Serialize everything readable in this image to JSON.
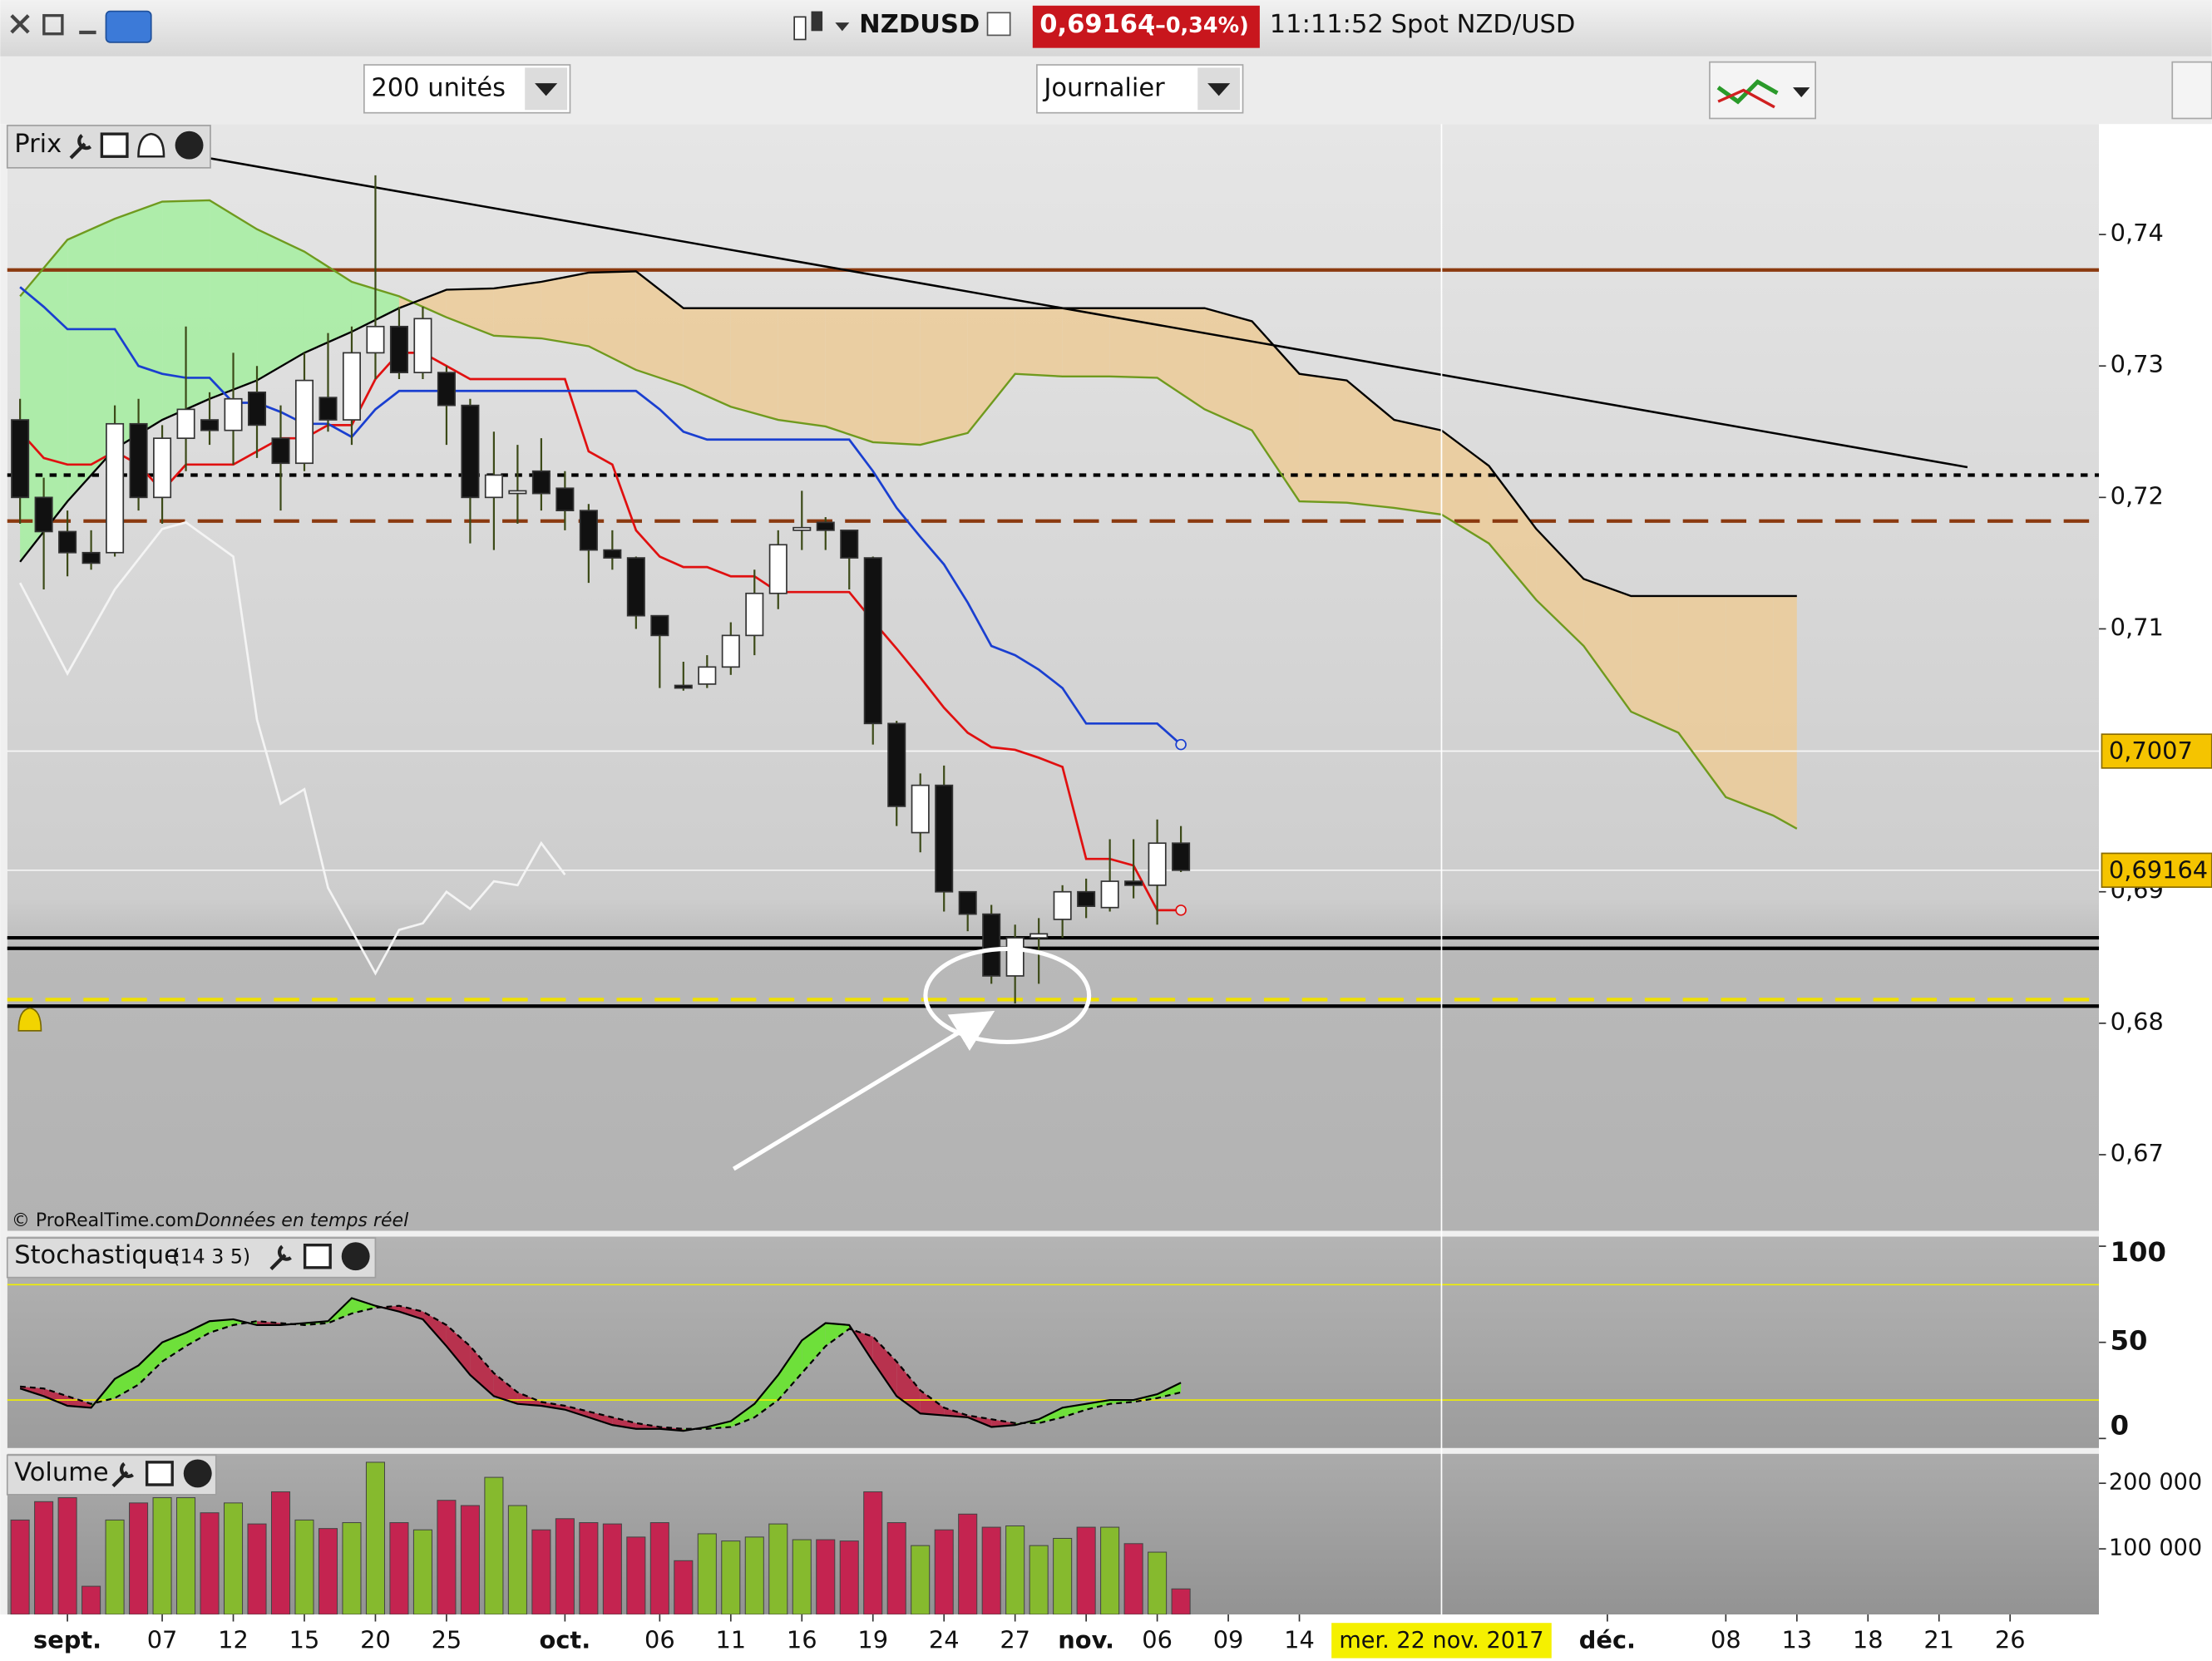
{
  "toolbar": {
    "symbol": "NZDUSD",
    "price": "0,69164",
    "change": "(–0,34%)",
    "time": "11:11:52",
    "description": "Spot NZD/USD",
    "units": "200 unités",
    "period": "Journalier"
  },
  "chart_data": [
    {
      "type": "candlestick",
      "title": "Prix",
      "copyright": "© ProRealTime.com",
      "source_note": "Données en temps réel",
      "x": [
        0,
        1,
        2,
        3,
        4,
        5,
        6,
        7,
        8,
        9,
        10,
        11,
        12,
        13,
        14,
        15,
        16,
        17,
        18,
        19,
        20,
        21,
        22,
        23,
        24,
        25,
        26,
        27,
        28,
        29,
        30,
        31,
        32,
        33,
        34,
        35,
        36,
        37,
        38,
        39,
        40,
        41,
        42,
        43,
        44,
        45,
        46,
        47,
        48,
        49
      ],
      "open": [
        0.7259,
        0.72,
        0.7174,
        0.7158,
        0.7158,
        0.7256,
        0.72,
        0.7245,
        0.7259,
        0.7251,
        0.728,
        0.7245,
        0.7226,
        0.7276,
        0.7259,
        0.731,
        0.733,
        0.7295,
        0.7295,
        0.727,
        0.72,
        0.7203,
        0.722,
        0.7207,
        0.719,
        0.716,
        0.7154,
        0.711,
        0.7057,
        0.7058,
        0.7071,
        0.7095,
        0.7127,
        0.7175,
        0.7181,
        0.7175,
        0.7154,
        0.7028,
        0.6945,
        0.6981,
        0.69,
        0.6883,
        0.6836,
        0.6865,
        0.6879,
        0.69,
        0.6888,
        0.6908,
        0.6905,
        0.6937
      ],
      "high": [
        0.7275,
        0.7215,
        0.719,
        0.7175,
        0.727,
        0.7275,
        0.7255,
        0.733,
        0.728,
        0.731,
        0.73,
        0.727,
        0.731,
        0.7325,
        0.733,
        0.7445,
        0.7345,
        0.7345,
        0.73,
        0.7275,
        0.725,
        0.724,
        0.7245,
        0.722,
        0.7195,
        0.7175,
        0.7155,
        0.711,
        0.7075,
        0.708,
        0.7105,
        0.7145,
        0.7175,
        0.7205,
        0.7185,
        0.7175,
        0.7155,
        0.703,
        0.699,
        0.6996,
        0.69,
        0.689,
        0.6875,
        0.688,
        0.6905,
        0.691,
        0.694,
        0.694,
        0.6955,
        0.695
      ],
      "low": [
        0.718,
        0.713,
        0.714,
        0.7145,
        0.7155,
        0.719,
        0.718,
        0.722,
        0.724,
        0.7225,
        0.723,
        0.719,
        0.722,
        0.725,
        0.724,
        0.729,
        0.729,
        0.729,
        0.724,
        0.7165,
        0.716,
        0.718,
        0.719,
        0.7175,
        0.7135,
        0.7145,
        0.71,
        0.7055,
        0.7053,
        0.7055,
        0.7065,
        0.708,
        0.7115,
        0.716,
        0.716,
        0.713,
        0.7012,
        0.695,
        0.693,
        0.6885,
        0.687,
        0.683,
        0.6815,
        0.683,
        0.6865,
        0.688,
        0.6885,
        0.6895,
        0.6875,
        0.6915
      ],
      "close": [
        0.72,
        0.7174,
        0.7158,
        0.715,
        0.7256,
        0.72,
        0.7245,
        0.7267,
        0.7251,
        0.7275,
        0.7255,
        0.7226,
        0.7289,
        0.7259,
        0.731,
        0.733,
        0.7295,
        0.7336,
        0.727,
        0.72,
        0.7217,
        0.7205,
        0.7203,
        0.719,
        0.716,
        0.7154,
        0.711,
        0.7095,
        0.7055,
        0.7071,
        0.7095,
        0.7127,
        0.7164,
        0.7177,
        0.7175,
        0.7154,
        0.7028,
        0.6965,
        0.6981,
        0.69,
        0.6883,
        0.6836,
        0.6865,
        0.6868,
        0.69,
        0.6889,
        0.6908,
        0.6905,
        0.6937,
        0.69164
      ],
      "up_color": "#ffffff",
      "down_color": "#111111",
      "lines": [
        {
          "color": "#e01010",
          "values": [
            0.725,
            0.723,
            0.7225,
            0.7225,
            0.7235,
            0.7225,
            0.7205,
            0.7225,
            0.7225,
            0.7225,
            0.7235,
            0.7245,
            0.7245,
            0.7255,
            0.7255,
            0.729,
            0.731,
            0.731,
            0.73,
            0.729,
            0.729,
            0.729,
            0.729,
            0.729,
            0.7235,
            0.7225,
            0.7175,
            0.7155,
            0.7147,
            0.7147,
            0.714,
            0.714,
            0.7128,
            0.7128,
            0.7128,
            0.7128,
            0.7106,
            0.7085,
            0.7063,
            0.704,
            0.7021,
            0.701,
            0.7008,
            0.7002,
            0.6995,
            0.6925,
            0.6925,
            0.692,
            0.6886,
            0.6886
          ]
        },
        {
          "color": "#1a3fd0",
          "values": [
            0.736,
            0.7345,
            0.7328,
            0.7328,
            0.7328,
            0.73,
            0.7294,
            0.7291,
            0.7291,
            0.7272,
            0.7272,
            0.7265,
            0.7256,
            0.7256,
            0.7246,
            0.7267,
            0.7281,
            0.7281,
            0.7281,
            0.7281,
            0.7281,
            0.7281,
            0.7281,
            0.7281,
            0.7281,
            0.7281,
            0.7281,
            0.7267,
            0.725,
            0.7244,
            0.7244,
            0.7244,
            0.7244,
            0.7244,
            0.7244,
            0.7244,
            0.722,
            0.7192,
            0.717,
            0.7149,
            0.712,
            0.7087,
            0.708,
            0.7069,
            0.7055,
            0.7028,
            0.7028,
            0.7028,
            0.7028,
            0.7012
          ]
        },
        {
          "color": "#f4f4f4",
          "x": [
            0,
            2,
            4,
            6,
            7,
            9,
            10,
            11,
            12,
            13,
            15,
            16,
            17,
            18,
            19,
            20,
            21,
            22,
            23
          ],
          "values": [
            0.7135,
            0.7066,
            0.713,
            0.7176,
            0.7181,
            0.7155,
            0.7031,
            0.6967,
            0.6978,
            0.6903,
            0.6838,
            0.6871,
            0.6876,
            0.69,
            0.6887,
            0.6908,
            0.6905,
            0.6937,
            0.6913
          ]
        }
      ],
      "cloud": {
        "x": [
          0,
          2,
          4,
          6,
          8,
          10,
          12,
          14,
          16,
          18,
          20,
          22,
          24,
          26,
          28,
          30,
          32,
          34,
          36,
          38,
          40,
          42,
          44,
          46,
          48,
          50,
          52,
          54,
          56,
          58,
          60,
          62,
          64,
          66,
          68,
          70,
          72,
          74,
          75
        ],
        "span_a": {
          "color": "#6f9a1e",
          "values": [
            0.7353,
            0.7396,
            0.7412,
            0.7425,
            0.7426,
            0.7404,
            0.7387,
            0.7364,
            0.7353,
            0.7337,
            0.7323,
            0.7321,
            0.7315,
            0.7297,
            0.7285,
            0.7269,
            0.7259,
            0.7254,
            0.7242,
            0.724,
            0.7249,
            0.7294,
            0.7292,
            0.7292,
            0.7291,
            0.7267,
            0.7251,
            0.7197,
            0.7196,
            0.7192,
            0.7187,
            0.7165,
            0.7122,
            0.7087,
            0.7037,
            0.7021,
            0.6972,
            0.6958,
            0.6948
          ]
        },
        "span_b": {
          "color": "#000000",
          "values": [
            0.7151,
            0.7197,
            0.7237,
            0.7259,
            0.7275,
            0.7289,
            0.731,
            0.7326,
            0.7344,
            0.7358,
            0.7359,
            0.7364,
            0.7371,
            0.7372,
            0.7344,
            0.7344,
            0.7344,
            0.7344,
            0.7344,
            0.7344,
            0.7344,
            0.7344,
            0.7344,
            0.7344,
            0.7344,
            0.7344,
            0.7334,
            0.7294,
            0.7289,
            0.7259,
            0.7251,
            0.7224,
            0.7176,
            0.7138,
            0.7125,
            0.7125,
            0.7125,
            0.7125,
            0.7125
          ]
        },
        "fill_up": "#a4eea0",
        "fill_down": "#eccb98"
      },
      "hlines": [
        {
          "value": 0.7373,
          "color": "#8b3a10",
          "style": "solid"
        },
        {
          "value": 0.7217,
          "color": "#000000",
          "style": "dotted"
        },
        {
          "value": 0.7182,
          "color": "#8b3a10",
          "style": "dashed"
        },
        {
          "value": 0.6865,
          "color": "#000000",
          "style": "solid"
        },
        {
          "value": 0.6857,
          "color": "#000000",
          "style": "solid"
        },
        {
          "value": 0.6818,
          "color": "#f0e000",
          "style": "dashed"
        },
        {
          "value": 0.6813,
          "color": "#000000",
          "style": "solid"
        }
      ],
      "trendline": {
        "color": "#000000",
        "x": [
          8,
          82.2
        ],
        "values": [
          0.7458,
          0.7223
        ]
      },
      "price_labels": [
        {
          "value": 0.7007,
          "label": "0,7007"
        },
        {
          "value": 0.69164,
          "label": "0,69164"
        }
      ],
      "ylim": [
        0.6642,
        0.7484
      ],
      "yticks": [
        {
          "value": 0.67,
          "label": "0,67"
        },
        {
          "value": 0.68,
          "label": "0,68"
        },
        {
          "value": 0.69,
          "label": "0,69"
        },
        {
          "value": 0.71,
          "label": "0,71"
        },
        {
          "value": 0.72,
          "label": "0,72"
        },
        {
          "value": 0.73,
          "label": "0,73"
        },
        {
          "value": 0.74,
          "label": "0,74"
        }
      ]
    },
    {
      "type": "stochastic",
      "title": "Stochastique",
      "parameters": "(14 3 5)",
      "k": {
        "color": "#000000",
        "values": [
          26,
          22,
          17,
          16,
          31,
          38,
          50,
          55,
          61,
          62,
          59,
          59,
          60,
          61,
          73,
          69,
          66,
          62,
          48,
          33,
          22,
          18,
          17,
          15,
          11,
          7,
          5,
          5,
          4,
          6,
          9,
          18,
          33,
          51,
          60,
          59,
          40,
          22,
          13,
          12,
          11,
          6,
          7,
          10,
          16,
          18,
          20,
          20,
          23,
          29
        ]
      },
      "d": {
        "color": "#000000",
        "values": [
          27,
          26,
          22,
          18,
          21,
          28,
          40,
          48,
          55,
          59,
          61,
          60,
          59,
          60,
          65,
          68,
          69,
          66,
          59,
          48,
          34,
          24,
          19,
          17,
          14,
          11,
          8,
          6,
          5,
          5,
          6,
          11,
          20,
          34,
          48,
          57,
          53,
          40,
          25,
          16,
          12,
          10,
          8,
          8,
          11,
          15,
          18,
          19,
          21,
          24
        ]
      },
      "up_color": "#6ee03a",
      "down_color": "#b8324e",
      "levels": [
        20,
        80
      ],
      "level_color": "#f0f000",
      "ylim": [
        -5,
        105
      ],
      "yticks": [
        0,
        50,
        100
      ]
    },
    {
      "type": "bar",
      "title": "Volume",
      "values": [
        144000,
        172000,
        178000,
        43000,
        144000,
        170000,
        178000,
        178000,
        155000,
        170000,
        138000,
        187000,
        144000,
        131000,
        140000,
        232000,
        140000,
        129000,
        174000,
        166000,
        209000,
        166000,
        129000,
        146000,
        140000,
        138000,
        118000,
        140000,
        82000,
        123000,
        112000,
        118000,
        138000,
        114000,
        114000,
        112000,
        187000,
        140000,
        105000,
        129000,
        153000,
        133000,
        135000,
        105000,
        116000,
        133000,
        133000,
        108000,
        95000,
        39000
      ],
      "up_color": "#86ba2e",
      "down_color": "#c42450",
      "ylim": [
        0,
        245000
      ],
      "yticks": [
        {
          "value": 100000,
          "label": "100 000"
        },
        {
          "value": 200000,
          "label": "200 000"
        }
      ],
      "xlim": [
        -0.54,
        87.75
      ],
      "xticks": [
        {
          "value": 2,
          "label": "sept."
        },
        {
          "value": 6,
          "label": "07"
        },
        {
          "value": 9,
          "label": "12"
        },
        {
          "value": 12,
          "label": "15"
        },
        {
          "value": 15,
          "label": "20"
        },
        {
          "value": 18,
          "label": "25"
        },
        {
          "value": 23,
          "label": "oct."
        },
        {
          "value": 27,
          "label": "06"
        },
        {
          "value": 30,
          "label": "11"
        },
        {
          "value": 33,
          "label": "16"
        },
        {
          "value": 36,
          "label": "19"
        },
        {
          "value": 39,
          "label": "24"
        },
        {
          "value": 42,
          "label": "27"
        },
        {
          "value": 45,
          "label": "nov."
        },
        {
          "value": 48,
          "label": "06"
        },
        {
          "value": 51,
          "label": "09"
        },
        {
          "value": 54,
          "label": "14"
        },
        {
          "value": 67,
          "label": "déc."
        },
        {
          "value": 72,
          "label": "08"
        },
        {
          "value": 75,
          "label": "13"
        },
        {
          "value": 78,
          "label": "18"
        },
        {
          "value": 81,
          "label": "21"
        },
        {
          "value": 84,
          "label": "26"
        }
      ],
      "cursor": {
        "value": 60,
        "label": "mer. 22 nov. 2017"
      }
    }
  ]
}
